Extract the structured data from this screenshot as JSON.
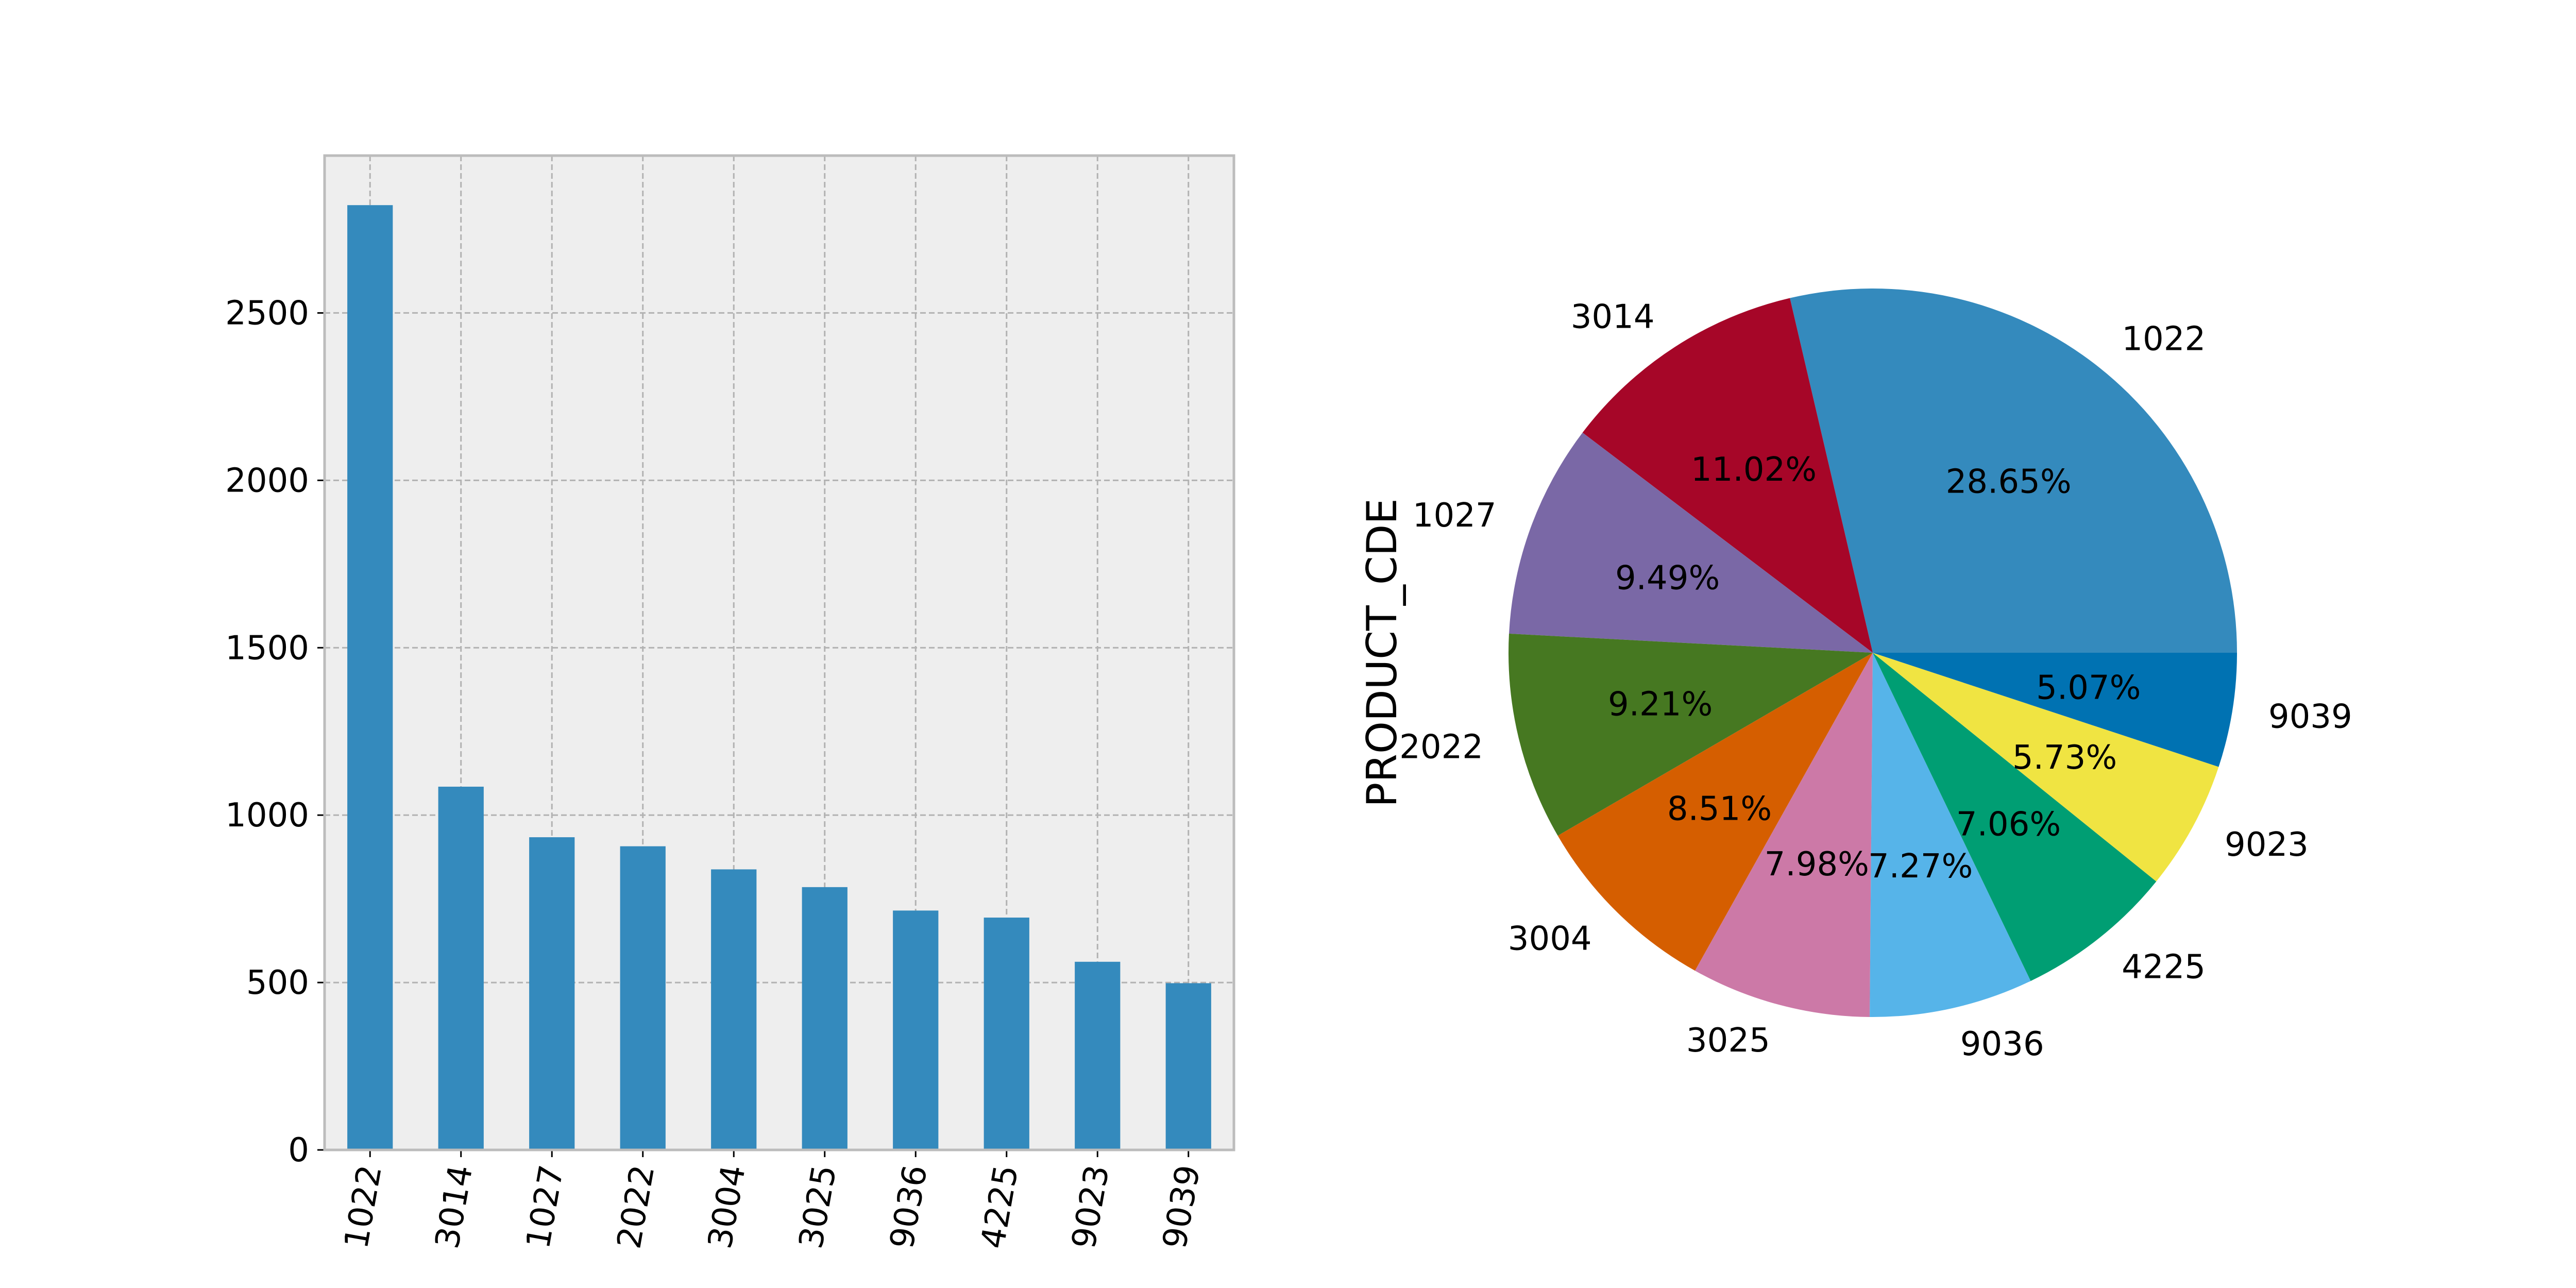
{
  "chart_data": [
    {
      "type": "bar",
      "categories": [
        "1022",
        "3014",
        "1027",
        "2022",
        "3004",
        "3025",
        "9036",
        "4225",
        "9023",
        "9039"
      ],
      "values": [
        2822,
        1085,
        934,
        907,
        838,
        785,
        715,
        694,
        562,
        498
      ],
      "yticks": [
        "0",
        "500",
        "1000",
        "1500",
        "2000",
        "2500"
      ],
      "ylim": [
        0,
        2970
      ],
      "grid": true,
      "xlabel": "",
      "ylabel": "",
      "title": "",
      "bar_color": "#348abd",
      "background_color": "#eeeeee"
    },
    {
      "type": "pie",
      "ylabel": "PRODUCT_CDE",
      "labels": [
        "1022",
        "3014",
        "1027",
        "2022",
        "3004",
        "3025",
        "9036",
        "4225",
        "9023",
        "9039"
      ],
      "percent_labels": [
        "28.65%",
        "11.02%",
        "9.49%",
        "9.21%",
        "8.51%",
        "7.98%",
        "7.27%",
        "7.06%",
        "5.73%",
        "5.07%"
      ],
      "values": [
        28.65,
        11.02,
        9.49,
        9.21,
        8.51,
        7.98,
        7.27,
        7.06,
        5.73,
        5.07
      ],
      "colors": [
        "#348abd",
        "#a60628",
        "#7a68a6",
        "#467821",
        "#d55e00",
        "#cc79a7",
        "#56b4e9",
        "#009e73",
        "#f0e442",
        "#0072b2"
      ]
    }
  ]
}
